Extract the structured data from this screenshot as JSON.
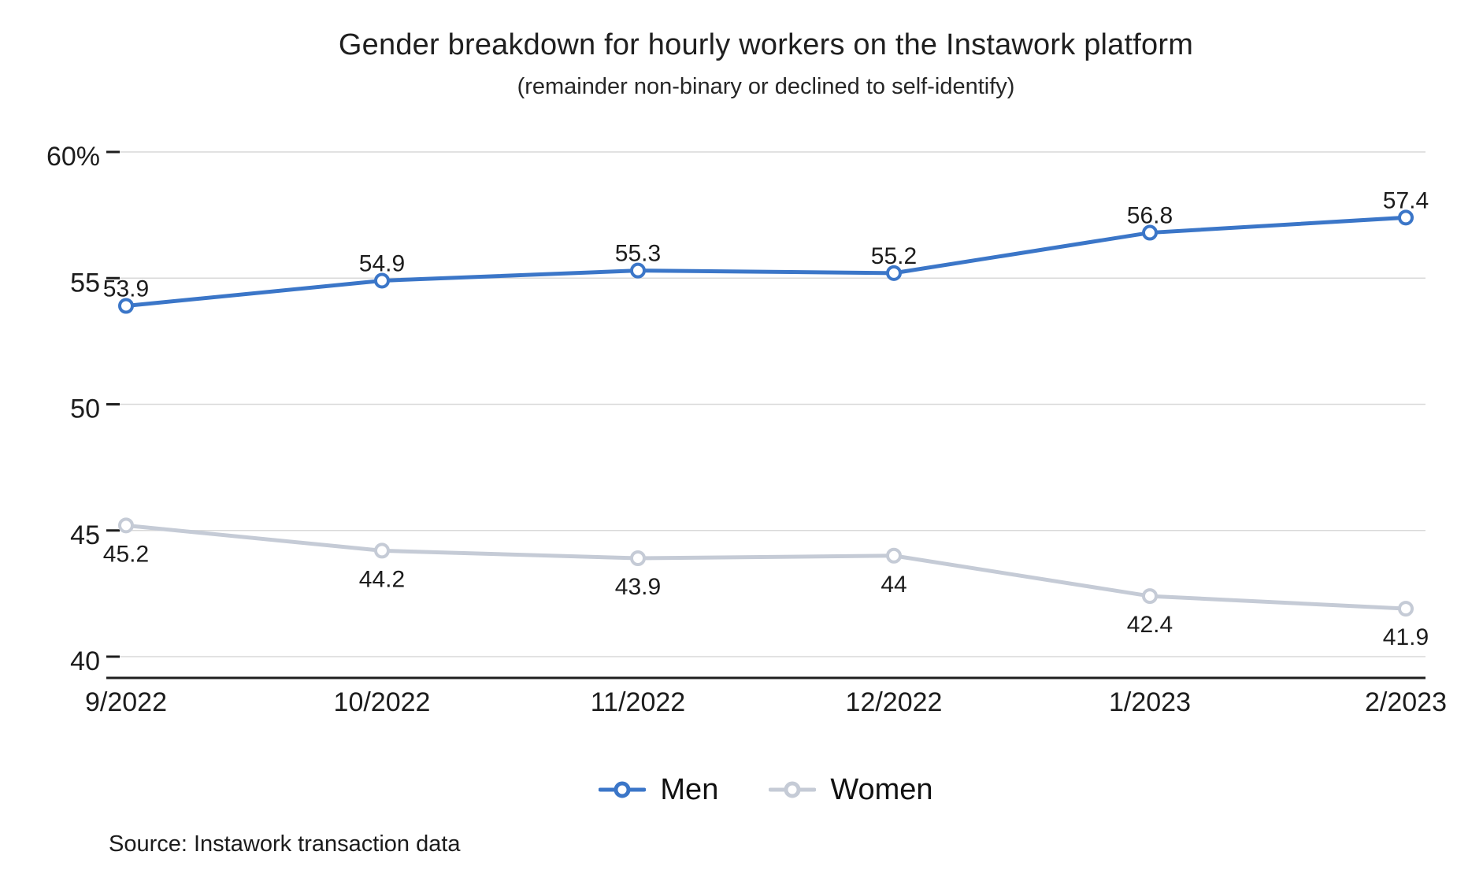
{
  "title": "Gender breakdown for hourly workers on the Instawork platform",
  "subtitle": "(remainder non-binary or declined to self-identify)",
  "source": "Source: Instawork transaction data",
  "colors": {
    "men": "#3B76C8",
    "men_label": "#4379CB",
    "women": "#C5CBD6",
    "women_label": "#B7BECD",
    "grid": "#D9D9D9",
    "axis": "#1E1E1E",
    "text": "#1A1A1A"
  },
  "chart_data": {
    "type": "line",
    "title": "Gender breakdown for hourly workers on the Instawork platform",
    "subtitle": "(remainder non-binary or declined to self-identify)",
    "categories": [
      "9/2022",
      "10/2022",
      "11/2022",
      "12/2022",
      "1/2023",
      "2/2023"
    ],
    "series": [
      {
        "name": "Men",
        "values": [
          53.9,
          54.9,
          55.3,
          55.2,
          56.8,
          57.4
        ],
        "labels": [
          "53.9",
          "54.9",
          "55.3",
          "55.2",
          "56.8",
          "57.4"
        ],
        "color_key": "men",
        "label_position": "above"
      },
      {
        "name": "Women",
        "values": [
          45.2,
          44.2,
          43.9,
          44,
          42.4,
          41.9
        ],
        "labels": [
          "45.2",
          "44.2",
          "43.9",
          "44",
          "42.4",
          "41.9"
        ],
        "color_key": "women",
        "label_position": "below"
      }
    ],
    "xlabel": "",
    "ylabel": "",
    "ylim": [
      40,
      60
    ],
    "y_ticks": [
      {
        "value": 60,
        "label": "60%"
      },
      {
        "value": 55,
        "label": "55"
      },
      {
        "value": 50,
        "label": "50"
      },
      {
        "value": 45,
        "label": "45"
      },
      {
        "value": 40,
        "label": "40"
      }
    ],
    "grid": true,
    "legend_position": "bottom",
    "marker": "open-circle"
  }
}
